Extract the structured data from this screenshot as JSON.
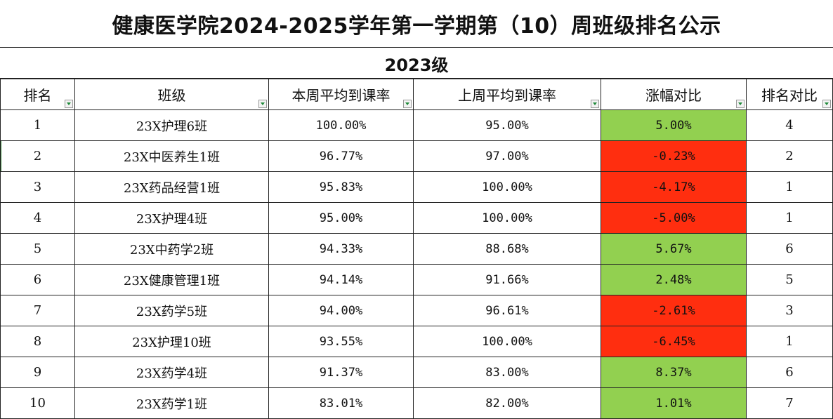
{
  "title": "健康医学院2024-2025学年第一学期第（10）周班级排名公示",
  "grade": "2023级",
  "columns": [
    "排名",
    "班级",
    "本周平均到课率",
    "上周平均到课率",
    "涨幅对比",
    "排名对比"
  ],
  "colors": {
    "increase": "#92d050",
    "decrease": "#ff2e0f",
    "border": "#222222"
  },
  "rows": [
    {
      "rank": "1",
      "class": "23X护理6班",
      "this_week": "100.00%",
      "last_week": "95.00%",
      "change": "5.00%",
      "trend": "up",
      "rank_compare": "4"
    },
    {
      "rank": "2",
      "class": "23X中医养生1班",
      "this_week": "96.77%",
      "last_week": "97.00%",
      "change": "-0.23%",
      "trend": "down",
      "rank_compare": "2"
    },
    {
      "rank": "3",
      "class": "23X药品经营1班",
      "this_week": "95.83%",
      "last_week": "100.00%",
      "change": "-4.17%",
      "trend": "down",
      "rank_compare": "1"
    },
    {
      "rank": "4",
      "class": "23X护理4班",
      "this_week": "95.00%",
      "last_week": "100.00%",
      "change": "-5.00%",
      "trend": "down",
      "rank_compare": "1"
    },
    {
      "rank": "5",
      "class": "23X中药学2班",
      "this_week": "94.33%",
      "last_week": "88.68%",
      "change": "5.67%",
      "trend": "up",
      "rank_compare": "6"
    },
    {
      "rank": "6",
      "class": "23X健康管理1班",
      "this_week": "94.14%",
      "last_week": "91.66%",
      "change": "2.48%",
      "trend": "up",
      "rank_compare": "5"
    },
    {
      "rank": "7",
      "class": "23X药学5班",
      "this_week": "94.00%",
      "last_week": "96.61%",
      "change": "-2.61%",
      "trend": "down",
      "rank_compare": "3"
    },
    {
      "rank": "8",
      "class": "23X护理10班",
      "this_week": "93.55%",
      "last_week": "100.00%",
      "change": "-6.45%",
      "trend": "down",
      "rank_compare": "1"
    },
    {
      "rank": "9",
      "class": "23X药学4班",
      "this_week": "91.37%",
      "last_week": "83.00%",
      "change": "8.37%",
      "trend": "up",
      "rank_compare": "6"
    },
    {
      "rank": "10",
      "class": "23X药学1班",
      "this_week": "83.01%",
      "last_week": "82.00%",
      "change": "1.01%",
      "trend": "up",
      "rank_compare": "7"
    }
  ]
}
